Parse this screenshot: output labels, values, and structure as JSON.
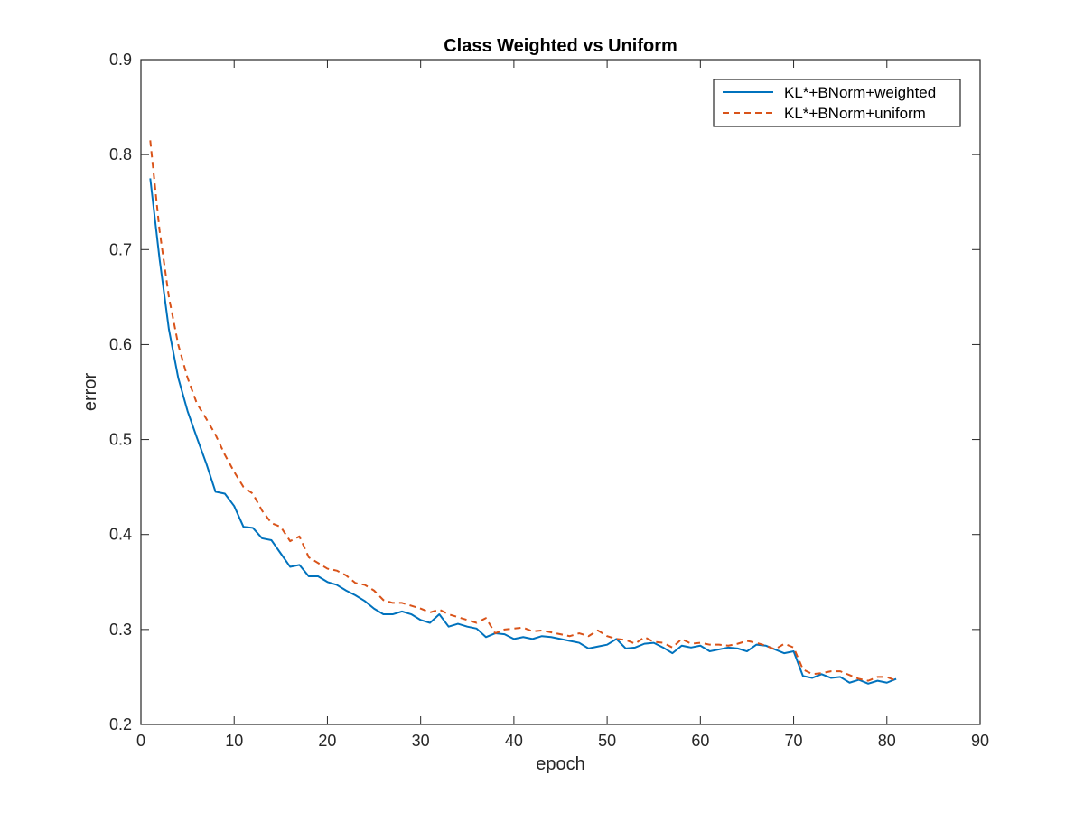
{
  "chart_data": {
    "type": "line",
    "title": "Class Weighted vs Uniform",
    "xlabel": "epoch",
    "ylabel": "error",
    "xlim": [
      0,
      90
    ],
    "ylim": [
      0.2,
      0.9
    ],
    "xticks": [
      0,
      10,
      20,
      30,
      40,
      50,
      60,
      70,
      80,
      90
    ],
    "yticks": [
      0.2,
      0.3,
      0.4,
      0.5,
      0.6,
      0.7,
      0.8,
      0.9
    ],
    "xtick_labels": [
      "0",
      "10",
      "20",
      "30",
      "40",
      "50",
      "60",
      "70",
      "80",
      "90"
    ],
    "ytick_labels": [
      "0.2",
      "0.3",
      "0.4",
      "0.5",
      "0.6",
      "0.7",
      "0.8",
      "0.9"
    ],
    "grid": false,
    "legend_position": "top-right",
    "series": [
      {
        "name": "KL*+BNorm+weighted",
        "color": "#0072BD",
        "line_style": "solid",
        "x": [
          1,
          2,
          3,
          4,
          5,
          6,
          7,
          8,
          9,
          10,
          11,
          12,
          13,
          14,
          15,
          16,
          17,
          18,
          19,
          20,
          21,
          22,
          23,
          24,
          25,
          26,
          27,
          28,
          29,
          30,
          31,
          32,
          33,
          34,
          35,
          36,
          37,
          38,
          39,
          40,
          41,
          42,
          43,
          44,
          45,
          46,
          47,
          48,
          49,
          50,
          51,
          52,
          53,
          54,
          55,
          56,
          57,
          58,
          59,
          60,
          61,
          62,
          63,
          64,
          65,
          66,
          67,
          68,
          69,
          70,
          71,
          72,
          73,
          74,
          75,
          76,
          77,
          78,
          79,
          80,
          81
        ],
        "values": [
          0.775,
          0.69,
          0.616,
          0.565,
          0.53,
          0.502,
          0.475,
          0.445,
          0.443,
          0.43,
          0.408,
          0.407,
          0.396,
          0.394,
          0.38,
          0.366,
          0.368,
          0.356,
          0.356,
          0.35,
          0.347,
          0.341,
          0.336,
          0.33,
          0.322,
          0.316,
          0.316,
          0.319,
          0.316,
          0.31,
          0.307,
          0.316,
          0.303,
          0.306,
          0.303,
          0.301,
          0.292,
          0.296,
          0.295,
          0.29,
          0.292,
          0.29,
          0.293,
          0.292,
          0.29,
          0.288,
          0.286,
          0.28,
          0.282,
          0.284,
          0.29,
          0.28,
          0.281,
          0.285,
          0.286,
          0.281,
          0.275,
          0.283,
          0.281,
          0.283,
          0.277,
          0.279,
          0.281,
          0.28,
          0.277,
          0.284,
          0.283,
          0.279,
          0.275,
          0.277,
          0.251,
          0.249,
          0.253,
          0.249,
          0.25,
          0.244,
          0.247,
          0.243,
          0.246,
          0.244,
          0.248
        ]
      },
      {
        "name": "KL*+BNorm+uniform",
        "color": "#D95319",
        "line_style": "dashed",
        "x": [
          1,
          2,
          3,
          4,
          5,
          6,
          7,
          8,
          9,
          10,
          11,
          12,
          13,
          14,
          15,
          16,
          17,
          18,
          19,
          20,
          21,
          22,
          23,
          24,
          25,
          26,
          27,
          28,
          29,
          30,
          31,
          32,
          33,
          34,
          35,
          36,
          37,
          38,
          39,
          40,
          41,
          42,
          43,
          44,
          45,
          46,
          47,
          48,
          49,
          50,
          51,
          52,
          53,
          54,
          55,
          56,
          57,
          58,
          59,
          60,
          61,
          62,
          63,
          64,
          65,
          66,
          67,
          68,
          69,
          70,
          71,
          72,
          73,
          74,
          75,
          76,
          77,
          78,
          79,
          80,
          81
        ],
        "values": [
          0.815,
          0.72,
          0.65,
          0.6,
          0.565,
          0.538,
          0.522,
          0.505,
          0.484,
          0.466,
          0.45,
          0.443,
          0.425,
          0.412,
          0.408,
          0.393,
          0.398,
          0.376,
          0.37,
          0.364,
          0.362,
          0.357,
          0.349,
          0.347,
          0.341,
          0.331,
          0.328,
          0.328,
          0.325,
          0.322,
          0.318,
          0.321,
          0.316,
          0.313,
          0.31,
          0.307,
          0.312,
          0.296,
          0.3,
          0.301,
          0.302,
          0.298,
          0.299,
          0.297,
          0.295,
          0.293,
          0.296,
          0.293,
          0.299,
          0.293,
          0.29,
          0.289,
          0.285,
          0.292,
          0.287,
          0.286,
          0.281,
          0.29,
          0.285,
          0.286,
          0.284,
          0.284,
          0.283,
          0.285,
          0.288,
          0.286,
          0.283,
          0.279,
          0.285,
          0.281,
          0.258,
          0.253,
          0.254,
          0.256,
          0.256,
          0.252,
          0.248,
          0.246,
          0.25,
          0.25,
          0.246
        ]
      }
    ]
  }
}
